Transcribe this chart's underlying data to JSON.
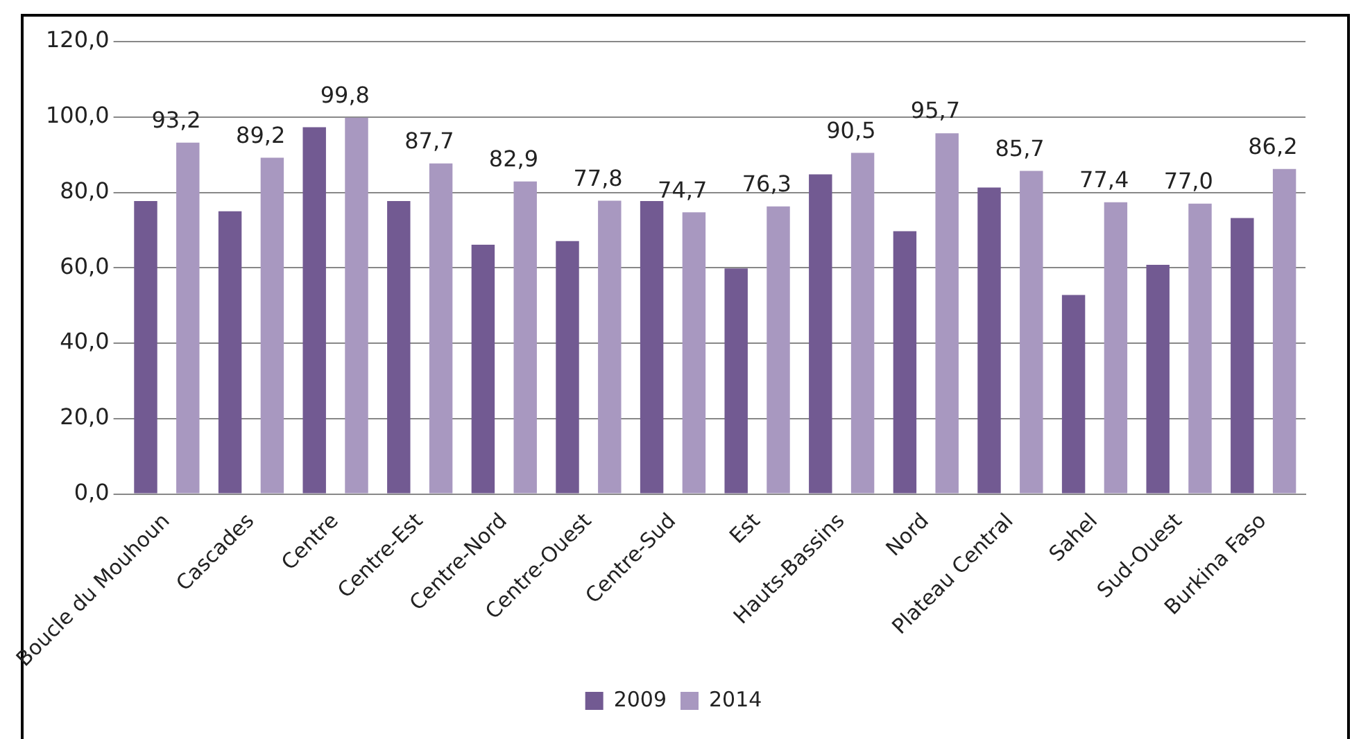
{
  "chart_data": {
    "type": "bar",
    "categories": [
      "Boucle du Mouhoun",
      "Cascades",
      "Centre",
      "Centre-Est",
      "Centre-Nord",
      "Centre-Ouest",
      "Centre-Sud",
      "Est",
      "Hauts-Bassins",
      "Nord",
      "Plateau Central",
      "Sahel",
      "Sud-Ouest",
      "Burkina Faso"
    ],
    "series": [
      {
        "name": "2009",
        "color": "#725a92",
        "values": [
          77.7,
          75.0,
          97.3,
          77.7,
          66.1,
          67.1,
          77.7,
          59.8,
          84.8,
          69.7,
          81.3,
          52.8,
          60.8,
          73.2
        ]
      },
      {
        "name": "2014",
        "color": "#a898c0",
        "values": [
          93.2,
          89.2,
          99.8,
          87.7,
          82.9,
          77.8,
          74.7,
          76.3,
          90.5,
          95.7,
          85.7,
          77.4,
          77.0,
          86.2
        ],
        "value_labels": [
          "93,2",
          "89,2",
          "99,8",
          "87,7",
          "82,9",
          "77,8",
          "74,7",
          "76,3",
          "90,5",
          "95,7",
          "85,7",
          "77,4",
          "77,0",
          "86,2"
        ]
      }
    ],
    "ylim": [
      0,
      120
    ],
    "yticks": [
      {
        "value": 0,
        "label": "0,0"
      },
      {
        "value": 20,
        "label": "20,0"
      },
      {
        "value": 40,
        "label": "40,0"
      },
      {
        "value": 60,
        "label": "60,0"
      },
      {
        "value": 80,
        "label": "80,0"
      },
      {
        "value": 100,
        "label": "100,0"
      },
      {
        "value": 120,
        "label": "120,0"
      }
    ],
    "grid": "y",
    "legend": "bottom"
  }
}
